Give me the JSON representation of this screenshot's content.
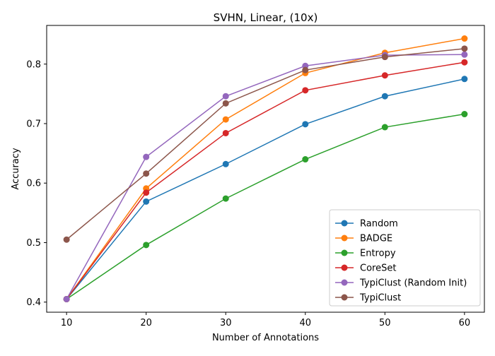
{
  "chart_data": {
    "type": "line",
    "title": "SVHN, Linear, (10x)",
    "xlabel": "Number of Annotations",
    "ylabel": "Accuracy",
    "x": [
      10,
      20,
      30,
      40,
      50,
      60
    ],
    "xlim": [
      7.5,
      62.5
    ],
    "ylim": [
      0.383,
      0.865
    ],
    "xticks": [
      10,
      20,
      30,
      40,
      50,
      60
    ],
    "yticks": [
      0.4,
      0.5,
      0.6,
      0.7,
      0.8
    ],
    "grid": false,
    "legend_position": "lower-right",
    "series": [
      {
        "name": "Random",
        "color": "#1f77b4",
        "values": [
          0.405,
          0.569,
          0.632,
          0.699,
          0.746,
          0.775
        ]
      },
      {
        "name": "BADGE",
        "color": "#ff7f0e",
        "values": [
          0.405,
          0.591,
          0.707,
          0.785,
          0.819,
          0.843
        ]
      },
      {
        "name": "Entropy",
        "color": "#2ca02c",
        "values": [
          0.405,
          0.496,
          0.574,
          0.64,
          0.694,
          0.716
        ]
      },
      {
        "name": "CoreSet",
        "color": "#d62728",
        "values": [
          0.405,
          0.584,
          0.684,
          0.756,
          0.781,
          0.803
        ]
      },
      {
        "name": "TypiClust (Random Init)",
        "color": "#9467bd",
        "values": [
          0.405,
          0.644,
          0.746,
          0.797,
          0.815,
          0.816
        ]
      },
      {
        "name": "TypiClust",
        "color": "#8c564b",
        "values": [
          0.505,
          0.616,
          0.734,
          0.79,
          0.812,
          0.826
        ]
      }
    ]
  }
}
